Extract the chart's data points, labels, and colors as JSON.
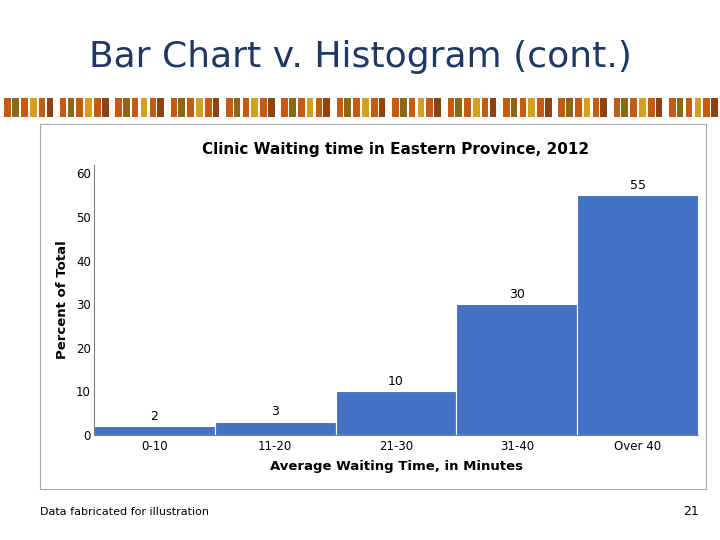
{
  "title": "Bar Chart v. Histogram (cont.)",
  "chart_title": "Clinic Waiting time in Eastern Province, 2012",
  "categories": [
    "0-10",
    "11-20",
    "21-30",
    "31-40",
    "Over 40"
  ],
  "values": [
    2,
    3,
    10,
    30,
    55
  ],
  "bar_color": "#4472C4",
  "bar_edgecolor": "#FFFFFF",
  "xlabel": "Average Waiting Time, in Minutes",
  "ylabel": "Percent of Total",
  "ylim": [
    0,
    62
  ],
  "yticks": [
    0,
    10,
    20,
    30,
    40,
    50,
    60
  ],
  "bg_color": "#FFFFFF",
  "slide_bg": "#FFFFFF",
  "title_fontsize": 26,
  "chart_title_fontsize": 11,
  "axis_label_fontsize": 9.5,
  "tick_fontsize": 8.5,
  "value_label_fontsize": 9,
  "footer_text": "Data fabricated for illustration",
  "footer_number": "21",
  "band_bg_color": "#1F3864",
  "band_orange": "#C55A11",
  "band_gold": "#BF9000",
  "band_tan": "#C4A46B",
  "title_color": "#1F3864"
}
